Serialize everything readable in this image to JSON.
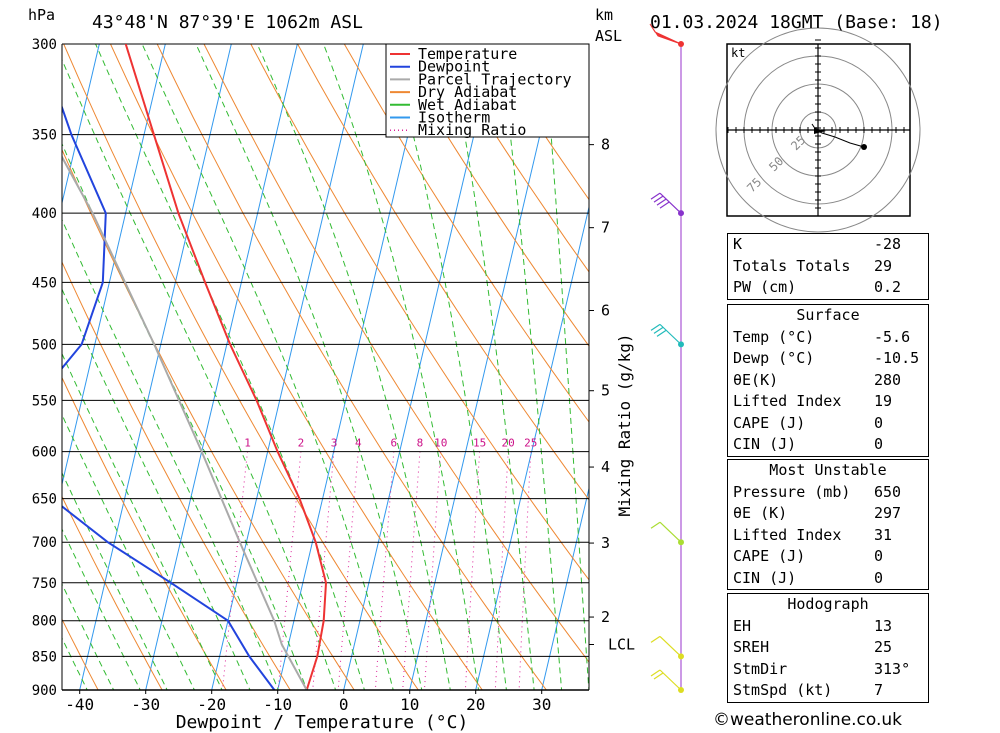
{
  "header": {
    "location": "43°48'N 87°39'E 1062m ASL",
    "datetime": "01.03.2024 18GMT (Base: 18)",
    "pressure_unit": "hPa",
    "height_unit": "km",
    "height_unit_sub": "ASL"
  },
  "legend": [
    {
      "label": "Temperature",
      "color": "#ee3333",
      "style": "solid"
    },
    {
      "label": "Dewpoint",
      "color": "#2244dd",
      "style": "solid"
    },
    {
      "label": "Parcel Trajectory",
      "color": "#aaaaaa",
      "style": "solid"
    },
    {
      "label": "Dry Adiabat",
      "color": "#ee8833",
      "style": "solid"
    },
    {
      "label": "Wet Adiabat",
      "color": "#33bb33",
      "style": "solid"
    },
    {
      "label": "Isotherm",
      "color": "#3399ee",
      "style": "solid"
    },
    {
      "label": "Mixing Ratio",
      "color": "#dd2299",
      "style": "dotted"
    }
  ],
  "chart_data": {
    "type": "line",
    "subtype": "skew-T log-P diagram",
    "xlabel": "Dewpoint / Temperature (°C)",
    "x_ticks": [
      -40,
      -30,
      -20,
      -10,
      0,
      10,
      20,
      30
    ],
    "pressure_levels": [
      300,
      350,
      400,
      450,
      500,
      550,
      600,
      650,
      700,
      750,
      800,
      850,
      900
    ],
    "y_scale": "log",
    "right_axis_label": "Mixing Ratio (g/kg)",
    "height_ticks_km": [
      {
        "label": "8",
        "p": 356
      },
      {
        "label": "7",
        "p": 410
      },
      {
        "label": "6",
        "p": 472
      },
      {
        "label": "5",
        "p": 541
      },
      {
        "label": "4",
        "p": 616
      },
      {
        "label": "3",
        "p": 701
      },
      {
        "label": "2",
        "p": 795
      },
      {
        "label": "LCL",
        "p": 833
      }
    ],
    "mixing_ratio_labels": [
      "1",
      "2",
      "3",
      "4",
      "6",
      "8",
      "10",
      "15",
      "20",
      "25"
    ],
    "mixing_ratio_values": [
      1,
      2,
      3,
      4,
      6,
      8,
      10,
      15,
      20,
      25
    ],
    "series": [
      {
        "name": "Temperature",
        "color": "#ee3333",
        "points": [
          [
            900,
            -5.6
          ],
          [
            850,
            -5.2
          ],
          [
            800,
            -5.5
          ],
          [
            750,
            -6.5
          ],
          [
            700,
            -9.5
          ],
          [
            650,
            -13.5
          ],
          [
            600,
            -18.5
          ],
          [
            550,
            -23.5
          ],
          [
            500,
            -29.5
          ],
          [
            450,
            -35.5
          ],
          [
            400,
            -42
          ],
          [
            350,
            -48.5
          ],
          [
            300,
            -56
          ]
        ]
      },
      {
        "name": "Dewpoint",
        "color": "#2244dd",
        "points": [
          [
            900,
            -10.5
          ],
          [
            850,
            -15.5
          ],
          [
            800,
            -20
          ],
          [
            750,
            -30
          ],
          [
            700,
            -41
          ],
          [
            650,
            -51
          ],
          [
            620,
            -55
          ],
          [
            600,
            -56
          ],
          [
            550,
            -57
          ],
          [
            500,
            -52
          ],
          [
            450,
            -51
          ],
          [
            400,
            -53
          ],
          [
            350,
            -61
          ],
          [
            300,
            -69
          ]
        ]
      },
      {
        "name": "Parcel Trajectory",
        "color": "#aaaaaa",
        "points": [
          [
            900,
            -5.6
          ],
          [
            833,
            -11
          ],
          [
            800,
            -13
          ],
          [
            700,
            -21
          ],
          [
            600,
            -30
          ],
          [
            500,
            -41
          ],
          [
            400,
            -55
          ],
          [
            300,
            -75
          ]
        ]
      }
    ],
    "winds": [
      {
        "p": 300,
        "color": "#ee3333",
        "flag": true
      },
      {
        "p": 400,
        "color": "#8833cc",
        "barbs": 4
      },
      {
        "p": 500,
        "color": "#22bbbb",
        "barbs": 3
      },
      {
        "p": 700,
        "color": "#aadd33",
        "barbs": 1
      },
      {
        "p": 850,
        "color": "#dddd22",
        "barbs": 1
      },
      {
        "p": 900,
        "color": "#dddd22",
        "barbs": 2
      }
    ]
  },
  "hodograph": {
    "unit": "kt",
    "ring_labels": [
      "25",
      "50",
      "75"
    ]
  },
  "indices": {
    "k": {
      "label": "K",
      "value": "-28"
    },
    "totals": {
      "label": "Totals Totals",
      "value": "29"
    },
    "pw": {
      "label": "PW (cm)",
      "value": "0.2"
    }
  },
  "surface": {
    "title": "Surface",
    "temp": {
      "label": "Temp (°C)",
      "value": "-5.6"
    },
    "dewp": {
      "label": "Dewp (°C)",
      "value": "-10.5"
    },
    "theta_e": {
      "label": "θE(K)",
      "value": "280"
    },
    "lifted": {
      "label": "Lifted Index",
      "value": "19"
    },
    "cape": {
      "label": "CAPE (J)",
      "value": "0"
    },
    "cin": {
      "label": "CIN (J)",
      "value": "0"
    }
  },
  "most_unstable": {
    "title": "Most Unstable",
    "pressure": {
      "label": "Pressure (mb)",
      "value": "650"
    },
    "theta_e": {
      "label": "θE (K)",
      "value": "297"
    },
    "lifted": {
      "label": "Lifted Index",
      "value": "31"
    },
    "cape": {
      "label": "CAPE (J)",
      "value": "0"
    },
    "cin": {
      "label": "CIN (J)",
      "value": "0"
    }
  },
  "hodo_params": {
    "title": "Hodograph",
    "eh": {
      "label": "EH",
      "value": "13"
    },
    "sreh": {
      "label": "SREH",
      "value": "25"
    },
    "stmdir": {
      "label": "StmDir",
      "value": "313°"
    },
    "stmspd": {
      "label": "StmSpd (kt)",
      "value": "7"
    }
  },
  "footer": {
    "copyright": "©weatheronline.co.uk"
  }
}
